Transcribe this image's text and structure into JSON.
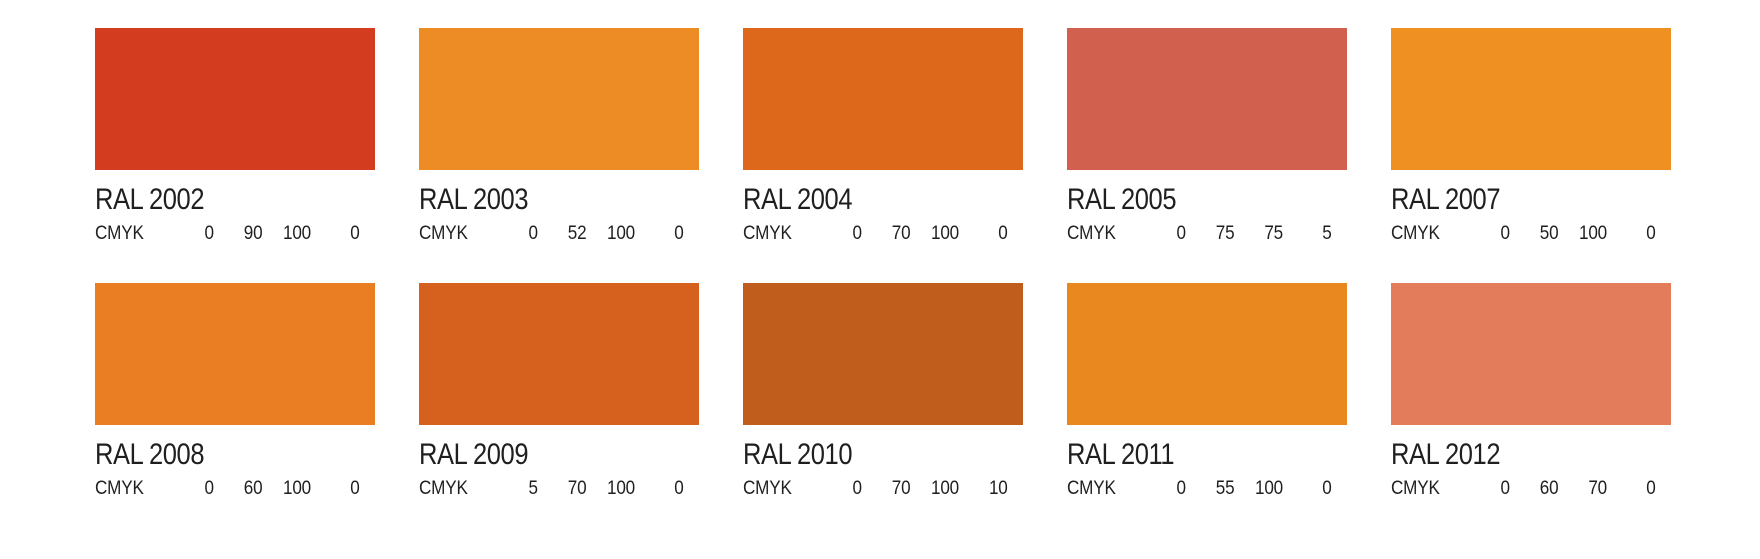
{
  "page": {
    "background": "#ffffff",
    "text_color": "#1f1f1f"
  },
  "swatches": [
    {
      "name": "RAL 2002",
      "color": "#d43c20",
      "model": "CMYK",
      "values": [
        "0",
        "90",
        "100",
        "0"
      ]
    },
    {
      "name": "RAL 2003",
      "color": "#ed8c24",
      "model": "CMYK",
      "values": [
        "0",
        "52",
        "100",
        "0"
      ]
    },
    {
      "name": "RAL 2004",
      "color": "#dd671b",
      "model": "CMYK",
      "values": [
        "0",
        "70",
        "100",
        "0"
      ]
    },
    {
      "name": "RAL 2005",
      "color": "#d2604e",
      "model": "CMYK",
      "values": [
        "0",
        "75",
        "75",
        "5"
      ]
    },
    {
      "name": "RAL 2007",
      "color": "#ee9022",
      "model": "CMYK",
      "values": [
        "0",
        "50",
        "100",
        "0"
      ]
    },
    {
      "name": "RAL 2008",
      "color": "#ea7e23",
      "model": "CMYK",
      "values": [
        "0",
        "60",
        "100",
        "0"
      ]
    },
    {
      "name": "RAL 2009",
      "color": "#d6611e",
      "model": "CMYK",
      "values": [
        "5",
        "70",
        "100",
        "0"
      ]
    },
    {
      "name": "RAL 2010",
      "color": "#c15d1c",
      "model": "CMYK",
      "values": [
        "0",
        "70",
        "100",
        "10"
      ]
    },
    {
      "name": "RAL 2011",
      "color": "#e8881f",
      "model": "CMYK",
      "values": [
        "0",
        "55",
        "100",
        "0"
      ]
    },
    {
      "name": "RAL 2012",
      "color": "#e37c5b",
      "model": "CMYK",
      "values": [
        "0",
        "60",
        "70",
        "0"
      ]
    }
  ]
}
